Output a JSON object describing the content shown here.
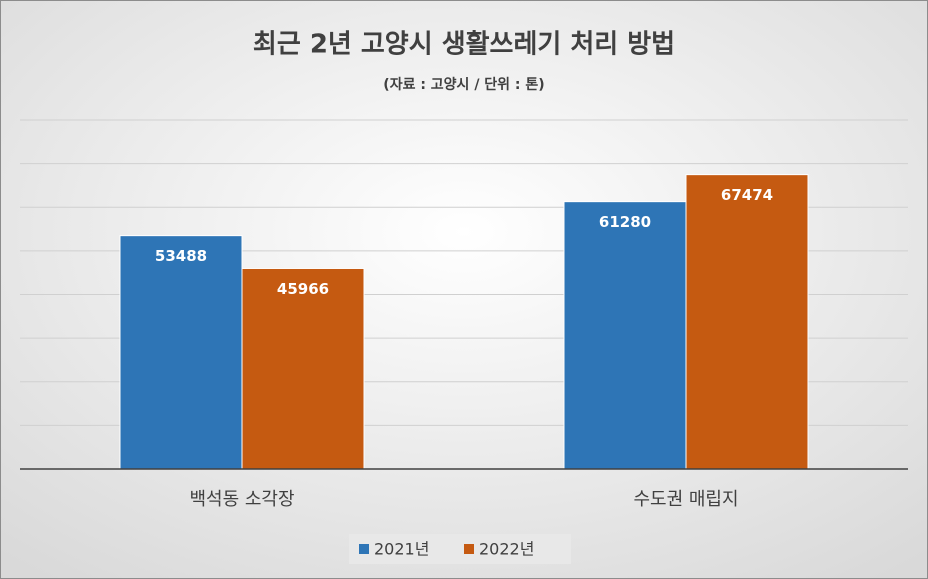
{
  "chart_data": {
    "type": "bar",
    "title": "최근 2년 고양시 생활쓰레기 처리 방법",
    "subtitle": "(자료 : 고양시 / 단위 : 톤)",
    "categories": [
      "백석동 소각장",
      "수도권 매립지"
    ],
    "series": [
      {
        "name": "2021년",
        "color": "#2e75b6",
        "values": [
          53488,
          61280
        ]
      },
      {
        "name": "2022년",
        "color": "#c55a11",
        "values": [
          45966,
          67474
        ]
      }
    ],
    "ylim": [
      0,
      80000
    ],
    "yticks": [
      0,
      10000,
      20000,
      30000,
      40000,
      50000,
      60000,
      70000,
      80000
    ],
    "grid": true,
    "legend": "bottom",
    "data_labels": true
  }
}
